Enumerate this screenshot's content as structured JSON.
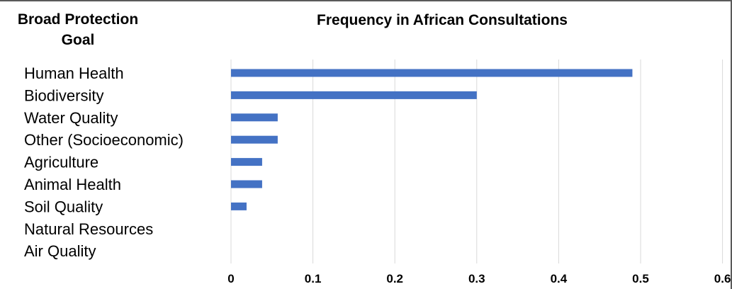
{
  "chart_data": {
    "type": "bar",
    "orientation": "horizontal",
    "column_header": "Broad Protection Goal",
    "title": "Frequency in African Consultations",
    "categories": [
      "Human Health",
      "Biodiversity",
      "Water Quality",
      "Other (Socioeconomic)",
      "Agriculture",
      "Animal Health",
      "Soil Quality",
      "Natural Resources",
      "Air Quality"
    ],
    "values": [
      0.49,
      0.3,
      0.057,
      0.057,
      0.038,
      0.038,
      0.019,
      0,
      0
    ],
    "xlim": [
      0,
      0.6
    ],
    "xticks": [
      "0",
      "0.1",
      "0.2",
      "0.3",
      "0.4",
      "0.5",
      "0.6"
    ],
    "bar_color": "#4472C4",
    "grid": "vertical"
  }
}
